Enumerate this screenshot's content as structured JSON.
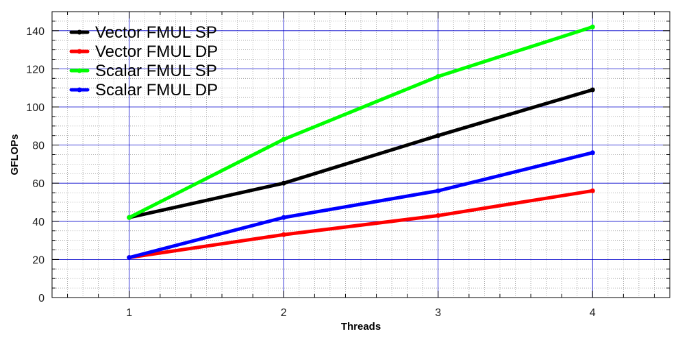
{
  "chart_data": {
    "type": "line",
    "title": "",
    "xlabel": "Threads",
    "ylabel": "GFLOPs",
    "x": [
      1,
      2,
      3,
      4
    ],
    "xlim": [
      0.5,
      4.5
    ],
    "ylim": [
      0,
      150
    ],
    "xticks": [
      1,
      2,
      3,
      4
    ],
    "yticks": [
      0,
      20,
      40,
      60,
      80,
      100,
      120,
      140
    ],
    "grid": {
      "major": true,
      "minor": true,
      "major_color": "#0000cc",
      "minor_color": "#999999"
    },
    "legend_position": "top-left",
    "series": [
      {
        "name": "Vector FMUL SP",
        "color": "#000000",
        "values": [
          42,
          60,
          85,
          109
        ]
      },
      {
        "name": "Vector FMUL DP",
        "color": "#ff0000",
        "values": [
          21,
          33,
          43,
          56
        ]
      },
      {
        "name": "Scalar FMUL SP",
        "color": "#00ff00",
        "values": [
          42,
          83,
          116,
          142
        ]
      },
      {
        "name": "Scalar FMUL DP",
        "color": "#0000ff",
        "values": [
          21,
          42,
          56,
          76
        ]
      }
    ]
  }
}
